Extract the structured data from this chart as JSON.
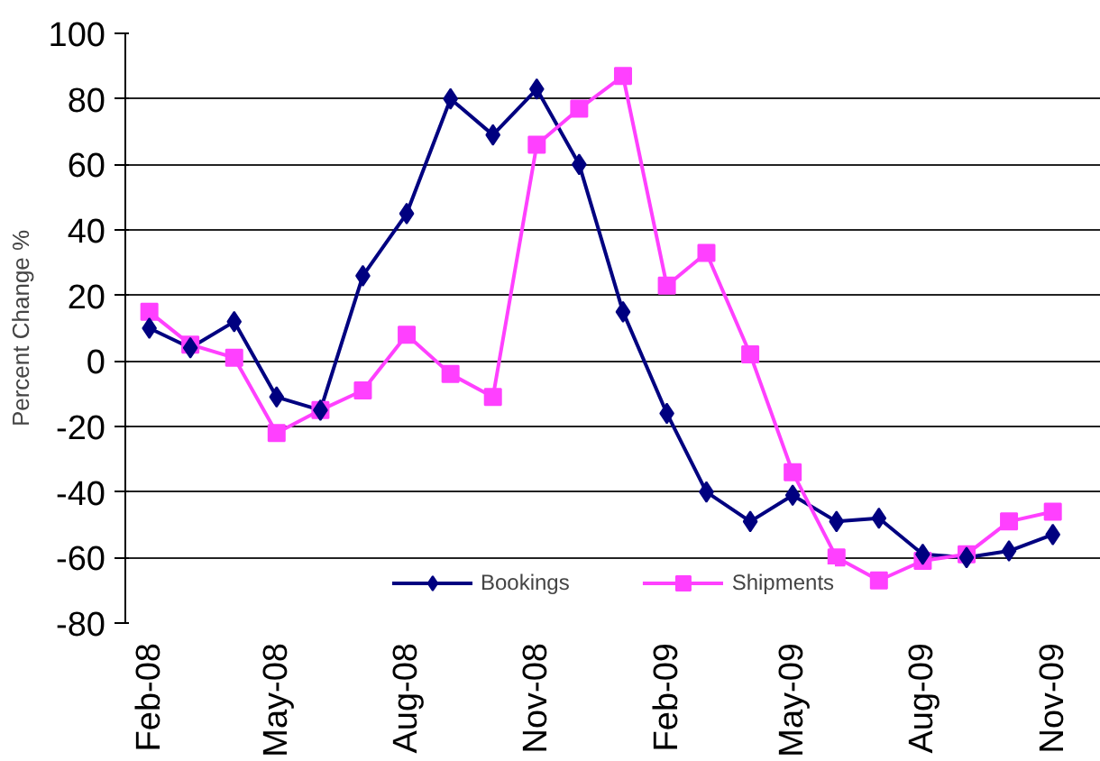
{
  "chart_data": {
    "type": "line",
    "ylabel": "Percent Change %",
    "x": [
      "2008-02",
      "2008-03",
      "2008-04",
      "2008-05",
      "2008-06",
      "2008-07",
      "2008-08",
      "2008-09",
      "2008-10",
      "2008-11",
      "2008-12",
      "2009-01",
      "2009-02",
      "2009-03",
      "2009-04",
      "2009-05",
      "2009-06",
      "2009-07",
      "2009-08",
      "2009-09",
      "2009-10",
      "2009-11"
    ],
    "series": [
      {
        "name": "Bookings",
        "color": "#000080",
        "marker": "diamond",
        "values": [
          10,
          4,
          12,
          -11,
          -15,
          26,
          45,
          80,
          69,
          83,
          60,
          15,
          -16,
          -40,
          -49,
          -41,
          -49,
          -48,
          -59,
          -60,
          -58,
          -53
        ]
      },
      {
        "name": "Shipments",
        "color": "#ff40ff",
        "marker": "square",
        "values": [
          15,
          5,
          1,
          -22,
          -15,
          -9,
          8,
          -4,
          -11,
          66,
          77,
          87,
          23,
          33,
          2,
          -34,
          -60,
          -67,
          -61,
          -59,
          -49,
          -46
        ]
      }
    ],
    "xlim": [
      "2008-01-15",
      "2009-12-05"
    ],
    "xticks": [
      {
        "value": "2008-02",
        "label": "Feb-08"
      },
      {
        "value": "2008-05",
        "label": "May-08"
      },
      {
        "value": "2008-08",
        "label": "Aug-08"
      },
      {
        "value": "2008-11",
        "label": "Nov-08"
      },
      {
        "value": "2009-02",
        "label": "Feb-09"
      },
      {
        "value": "2009-05",
        "label": "May-09"
      },
      {
        "value": "2009-08",
        "label": "Aug-09"
      },
      {
        "value": "2009-11",
        "label": "Nov-09"
      }
    ],
    "ylim": [
      -80,
      100
    ],
    "yticks": [
      -80,
      -60,
      -40,
      -20,
      0,
      20,
      40,
      60,
      80,
      100
    ],
    "grid": "y",
    "legend": "bottom",
    "line_style": "solid"
  }
}
